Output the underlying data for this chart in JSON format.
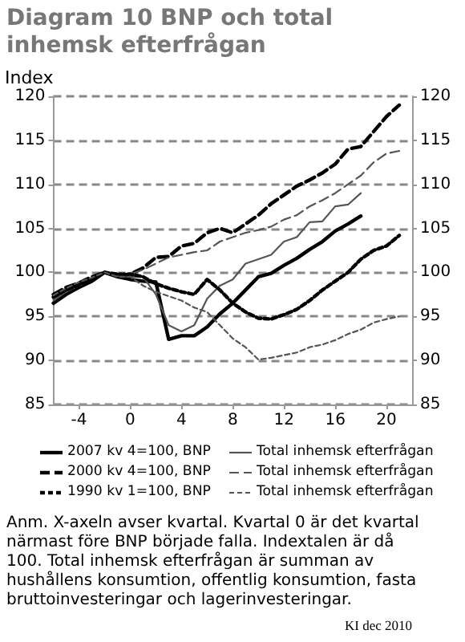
{
  "chart_data": {
    "type": "line",
    "title": "Diagram 10 BNP och total inhemsk efterfrågan",
    "ylabel": "Index",
    "x": [
      -6,
      -5,
      -4,
      -3,
      -2,
      -1,
      0,
      1,
      2,
      3,
      4,
      5,
      6,
      7,
      8,
      9,
      10,
      11,
      12,
      13,
      14,
      15,
      16,
      17,
      18,
      19,
      20,
      21
    ],
    "series": [
      {
        "name": "2007 kv 4=100, BNP",
        "color": "#000000",
        "line_style": "solid",
        "values": [
          96.5,
          97.5,
          98.3,
          99,
          100,
          99.5,
          99.2,
          99,
          98.9,
          92.4,
          92.8,
          92.8,
          93.8,
          95.3,
          96.5,
          98,
          99.5,
          99.9,
          100.8,
          101.6,
          102.6,
          103.5,
          104.7,
          105.5,
          106.4,
          null,
          null,
          null
        ]
      },
      {
        "name": "Total inhemsk efterfrågan",
        "color": "#555555",
        "line_style": "solid",
        "values": [
          96.8,
          97.8,
          98.5,
          99.2,
          100,
          99.6,
          99.5,
          99.5,
          97.5,
          94,
          93.3,
          94,
          97,
          98.5,
          99.2,
          101,
          101.5,
          102,
          103.5,
          104,
          105.7,
          105.8,
          107.5,
          107.7,
          109,
          null,
          null,
          null
        ]
      },
      {
        "name": "2000 kv 4=100, BNP",
        "color": "#000000",
        "line_style": "dashed",
        "values": [
          97.5,
          98.3,
          98.8,
          99.5,
          100,
          99.6,
          99.8,
          100.5,
          101.7,
          101.8,
          103,
          103.3,
          104.5,
          105,
          104.5,
          105.5,
          106.5,
          107.8,
          108.8,
          109.8,
          110.5,
          111.3,
          112.3,
          114,
          114.3,
          116,
          117.7,
          119
        ]
      },
      {
        "name": "Total inhemsk efterfrågan",
        "color": "#555555",
        "line_style": "dashed",
        "values": [
          97,
          98,
          98.7,
          99.3,
          100,
          99.7,
          99.8,
          100.3,
          101,
          101.7,
          102,
          102.3,
          102.5,
          103.5,
          104,
          104.5,
          104.8,
          105.2,
          106,
          106.5,
          107.5,
          108.2,
          109,
          110,
          111,
          112.5,
          113.5,
          113.8
        ]
      },
      {
        "name": "1990 kv 1=100, BNP",
        "color": "#000000",
        "line_style": "dotted",
        "values": [
          97.2,
          98,
          98.6,
          99.2,
          100,
          99.8,
          99.8,
          99.5,
          98.7,
          98.2,
          97.8,
          97.5,
          99.2,
          98,
          96.5,
          95.5,
          94.8,
          94.7,
          95.2,
          95.8,
          96.8,
          98,
          99,
          100,
          101.5,
          102.5,
          103,
          104.2
        ]
      },
      {
        "name": "Total inhemsk efterfrågan",
        "color": "#555555",
        "line_style": "dotted",
        "values": [
          97.4,
          98.2,
          98.9,
          99.4,
          100,
          99.5,
          99.5,
          98.5,
          97.8,
          97.3,
          96.8,
          96,
          95.5,
          94,
          92.5,
          91.5,
          90.1,
          90.3,
          90.6,
          90.9,
          91.5,
          91.8,
          92.3,
          93,
          93.5,
          94.3,
          94.7,
          95
        ]
      }
    ],
    "xlim": [
      -6,
      22
    ],
    "xticks": [
      -4,
      0,
      4,
      8,
      12,
      16,
      20
    ],
    "ylim": [
      85,
      120
    ],
    "yticks": [
      85,
      90,
      95,
      100,
      105,
      110,
      115,
      120
    ],
    "y2lim": [
      85,
      120
    ],
    "y2ticks": [
      85,
      90,
      95,
      100,
      105,
      110,
      115,
      120
    ],
    "grid": "y",
    "legend": "bottom",
    "marker": "none",
    "annotations": [
      "Anm. X-axeln avser kvartal. Kvartal 0 är det kvartal närmast före BNP började falla. Indextalen är då 100. Total inhemsk efterfrågan är summan av hushållens konsumtion, offentlig konsumtion, fasta bruttoinvesteringar och lagerinvesteringar.",
      "KI dec 2010"
    ]
  }
}
